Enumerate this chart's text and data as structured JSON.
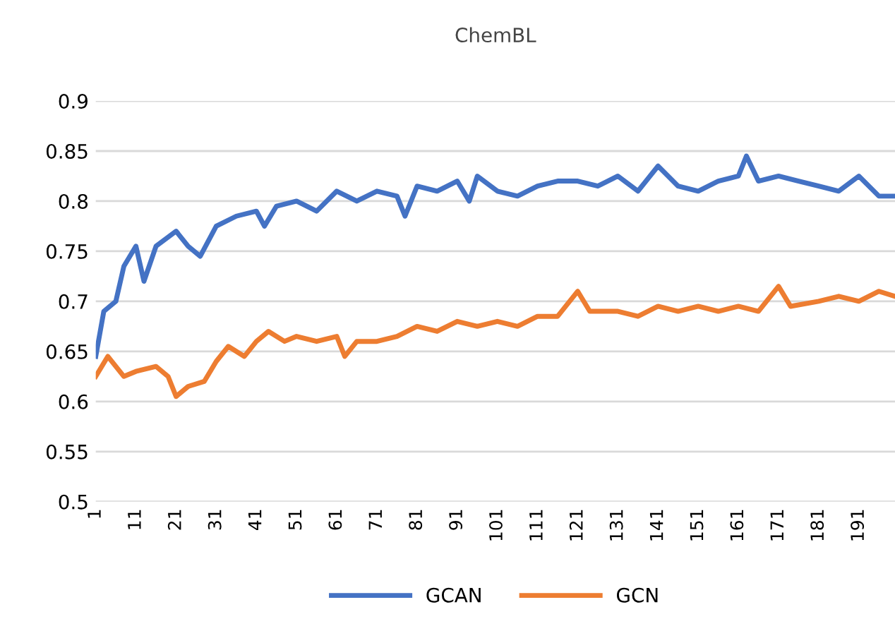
{
  "chart_data": {
    "type": "line",
    "title": "ChemBL",
    "xlim": [
      1,
      200
    ],
    "xticks": [
      1,
      11,
      21,
      31,
      41,
      51,
      61,
      71,
      81,
      91,
      101,
      111,
      121,
      131,
      141,
      151,
      161,
      171,
      181,
      191
    ],
    "ylim": [
      0.5,
      0.9
    ],
    "yticks": [
      0.5,
      0.55,
      0.6,
      0.65,
      0.7,
      0.75,
      0.8,
      0.85,
      0.9
    ],
    "grid": "y",
    "legend": "bottom",
    "marker": "none",
    "line_style": "solid",
    "series": [
      {
        "name": "GCAN",
        "color": "#4472c4",
        "x": [
          1,
          3,
          6,
          8,
          11,
          13,
          16,
          21,
          24,
          27,
          31,
          36,
          41,
          43,
          46,
          51,
          56,
          61,
          66,
          71,
          76,
          78,
          81,
          86,
          91,
          94,
          96,
          101,
          106,
          111,
          116,
          121,
          126,
          131,
          136,
          141,
          146,
          151,
          156,
          161,
          163,
          166,
          171,
          176,
          181,
          186,
          191,
          196,
          200
        ],
        "values": [
          0.645,
          0.69,
          0.7,
          0.735,
          0.755,
          0.72,
          0.755,
          0.77,
          0.755,
          0.745,
          0.775,
          0.785,
          0.79,
          0.775,
          0.795,
          0.8,
          0.79,
          0.81,
          0.8,
          0.81,
          0.805,
          0.785,
          0.815,
          0.81,
          0.82,
          0.8,
          0.825,
          0.81,
          0.805,
          0.815,
          0.82,
          0.82,
          0.815,
          0.825,
          0.81,
          0.835,
          0.815,
          0.81,
          0.82,
          0.825,
          0.845,
          0.82,
          0.825,
          0.82,
          0.815,
          0.81,
          0.825,
          0.805,
          0.805
        ]
      },
      {
        "name": "GCN",
        "color": "#ed7d31",
        "x": [
          1,
          4,
          8,
          11,
          16,
          19,
          21,
          24,
          28,
          31,
          34,
          38,
          41,
          44,
          48,
          51,
          56,
          61,
          63,
          66,
          71,
          76,
          81,
          86,
          91,
          96,
          101,
          106,
          111,
          116,
          121,
          124,
          131,
          136,
          141,
          146,
          151,
          156,
          161,
          166,
          171,
          174,
          181,
          186,
          191,
          196,
          200
        ],
        "values": [
          0.625,
          0.645,
          0.625,
          0.63,
          0.635,
          0.625,
          0.605,
          0.615,
          0.62,
          0.64,
          0.655,
          0.645,
          0.66,
          0.67,
          0.66,
          0.665,
          0.66,
          0.665,
          0.645,
          0.66,
          0.66,
          0.665,
          0.675,
          0.67,
          0.68,
          0.675,
          0.68,
          0.675,
          0.685,
          0.685,
          0.71,
          0.69,
          0.69,
          0.685,
          0.695,
          0.69,
          0.695,
          0.69,
          0.695,
          0.69,
          0.715,
          0.695,
          0.7,
          0.705,
          0.7,
          0.71,
          0.705
        ]
      }
    ]
  }
}
